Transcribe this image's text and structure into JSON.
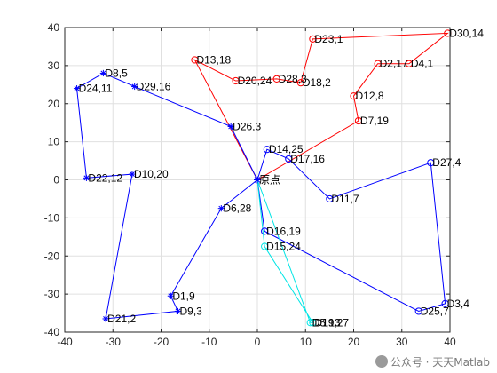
{
  "chart_data": {
    "type": "line",
    "title": "",
    "xlabel": "",
    "ylabel": "",
    "xlim": [
      -40,
      40
    ],
    "ylim": [
      -40,
      40
    ],
    "xticks": [
      -40,
      -30,
      -20,
      -10,
      0,
      10,
      20,
      30,
      40
    ],
    "yticks": [
      -40,
      -30,
      -20,
      -10,
      0,
      10,
      20,
      30,
      40
    ],
    "grid": true,
    "depot": {
      "label": "原点",
      "x": 0,
      "y": 0
    },
    "points": [
      {
        "label": "D30,14",
        "x": 39.5,
        "y": 38.5
      },
      {
        "label": "D23,1",
        "x": 11.5,
        "y": 37
      },
      {
        "label": "D13,18",
        "x": -13,
        "y": 31.5
      },
      {
        "label": "D2,17",
        "x": 25,
        "y": 30.5
      },
      {
        "label": "D4,1",
        "x": 31.5,
        "y": 30.5
      },
      {
        "label": "D8,5",
        "x": -32,
        "y": 28
      },
      {
        "label": "D28,3",
        "x": 4,
        "y": 26.5
      },
      {
        "label": "D20,24",
        "x": -4.5,
        "y": 26
      },
      {
        "label": "D18,2",
        "x": 9,
        "y": 25.5
      },
      {
        "label": "D24,11",
        "x": -37.5,
        "y": 24
      },
      {
        "label": "D29,16",
        "x": -25.5,
        "y": 24.5
      },
      {
        "label": "D12,8",
        "x": 20,
        "y": 22
      },
      {
        "label": "D7,19",
        "x": 21,
        "y": 15.5
      },
      {
        "label": "D26,3",
        "x": -5.5,
        "y": 14
      },
      {
        "label": "D14,25",
        "x": 2,
        "y": 8
      },
      {
        "label": "D17,16",
        "x": 6.5,
        "y": 5.5
      },
      {
        "label": "D27,4",
        "x": 36,
        "y": 4.5
      },
      {
        "label": "D10,20",
        "x": -26,
        "y": 1.5
      },
      {
        "label": "D22,12",
        "x": -35.5,
        "y": 0.5
      },
      {
        "label": "D11,7",
        "x": 15,
        "y": -5
      },
      {
        "label": "D6,28",
        "x": -7.5,
        "y": -7.5
      },
      {
        "label": "D16,19",
        "x": 1.5,
        "y": -13.5
      },
      {
        "label": "D15,24",
        "x": 1.5,
        "y": -17.5
      },
      {
        "label": "D1,9",
        "x": -18,
        "y": -30.5
      },
      {
        "label": "D3,4",
        "x": 39,
        "y": -32.5
      },
      {
        "label": "D9,3",
        "x": -16.5,
        "y": -34.5
      },
      {
        "label": "D25,7",
        "x": 33.5,
        "y": -34.5
      },
      {
        "label": "D21,2",
        "x": -31.5,
        "y": -36.5
      },
      {
        "label": "D19,27",
        "x": 11.5,
        "y": -37.5
      },
      {
        "label": "D5,13",
        "x": 11,
        "y": -37.5
      }
    ],
    "routes": [
      {
        "color": "#ff0000",
        "marker": "circle",
        "stops": [
          "D7,19",
          "D12,8",
          "D2,17",
          "D4,1",
          "D30,14",
          "D23,1",
          "D18,2",
          "D28,3",
          "D20,24",
          "D13,18"
        ]
      },
      {
        "color": "#0000ff",
        "marker": "star",
        "stops": [
          "D26,3",
          "D29,16",
          "D8,5",
          "D24,11",
          "D22,12",
          "D10,20",
          "D21,2",
          "D9,3",
          "D1,9",
          "D6,28"
        ]
      },
      {
        "color": "#0000ff",
        "marker": "circle",
        "stops": [
          "D14,25",
          "D17,16",
          "D11,7",
          "D27,4",
          "D3,4",
          "D25,7",
          "D16,19"
        ]
      },
      {
        "color": "#00e5e5",
        "marker": "circle",
        "stops": [
          "D15,24",
          "D19,27",
          "D5,13"
        ]
      }
    ]
  },
  "watermark": "公众号 · 天天Matlab"
}
